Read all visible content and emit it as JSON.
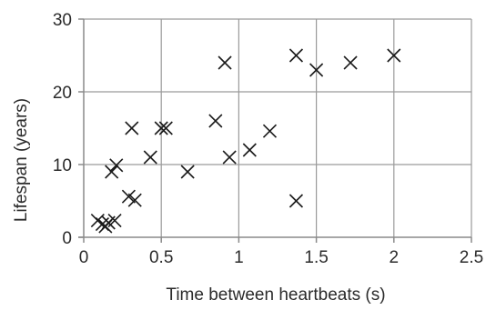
{
  "chart_data": {
    "type": "scatter",
    "title": "",
    "xlabel": "Time between heartbeats (s)",
    "ylabel": "Lifespan (years)",
    "xlim": [
      0,
      2.5
    ],
    "ylim": [
      0,
      30
    ],
    "x_ticks": [
      0,
      0.5,
      1,
      1.5,
      2,
      2.5
    ],
    "x_tick_labels": [
      "0",
      "0.5",
      "1",
      "1.5",
      "2",
      "2.5"
    ],
    "y_ticks": [
      0,
      10,
      20,
      30
    ],
    "y_tick_labels": [
      "0",
      "10",
      "20",
      "30"
    ],
    "grid": true,
    "marker": "x",
    "colors": {
      "marker": "#1a1a1a",
      "grid": "#9a9a9a",
      "axis": "#8a8a8a",
      "text": "#2b2b2b"
    },
    "points": [
      {
        "x": 0.09,
        "y": 2.3
      },
      {
        "x": 0.12,
        "y": 1.8
      },
      {
        "x": 0.14,
        "y": 1.5
      },
      {
        "x": 0.16,
        "y": 2.0
      },
      {
        "x": 0.18,
        "y": 9.0
      },
      {
        "x": 0.2,
        "y": 2.3
      },
      {
        "x": 0.21,
        "y": 9.9
      },
      {
        "x": 0.29,
        "y": 5.6
      },
      {
        "x": 0.31,
        "y": 15.0
      },
      {
        "x": 0.33,
        "y": 5.1
      },
      {
        "x": 0.43,
        "y": 11.0
      },
      {
        "x": 0.5,
        "y": 15.0
      },
      {
        "x": 0.53,
        "y": 15.0
      },
      {
        "x": 0.67,
        "y": 9.0
      },
      {
        "x": 0.85,
        "y": 16.0
      },
      {
        "x": 0.91,
        "y": 24.0
      },
      {
        "x": 0.94,
        "y": 11.0
      },
      {
        "x": 1.07,
        "y": 12.0
      },
      {
        "x": 1.2,
        "y": 14.6
      },
      {
        "x": 1.37,
        "y": 5.0
      },
      {
        "x": 1.37,
        "y": 25.0
      },
      {
        "x": 1.5,
        "y": 23.0
      },
      {
        "x": 1.72,
        "y": 24.0
      },
      {
        "x": 2.0,
        "y": 25.0
      }
    ]
  }
}
